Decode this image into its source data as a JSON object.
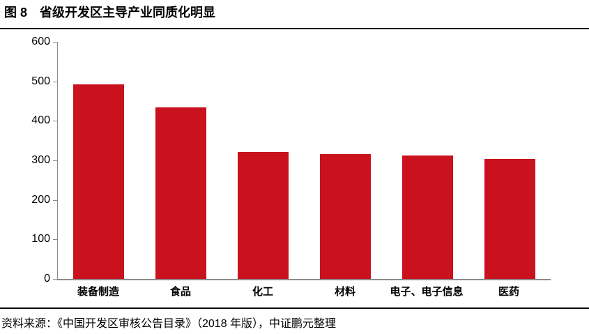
{
  "header": {
    "figure_label": "图 8",
    "title": "省级开发区主导产业同质化明显"
  },
  "source": {
    "text": "资料来源：《中国开发区审核公告目录》（2018 年版），中证鹏元整理"
  },
  "colors": {
    "bar": "#C9121E",
    "axis": "#8C8C8C",
    "rule": "#000000"
  },
  "chart_data": {
    "type": "bar",
    "title": "省级开发区主导产业同质化明显",
    "categories": [
      "装备制造",
      "食品",
      "化工",
      "材料",
      "电子、电子信息",
      "医药"
    ],
    "values": [
      493,
      434,
      322,
      316,
      312,
      304
    ],
    "xlabel": "",
    "ylabel": "",
    "ylim": [
      0,
      600
    ],
    "y_ticks": [
      0,
      100,
      200,
      300,
      400,
      500,
      600
    ],
    "grid": false,
    "legend_position": "none",
    "bar_color": "#C9121E",
    "axis_color": "#8C8C8C"
  }
}
